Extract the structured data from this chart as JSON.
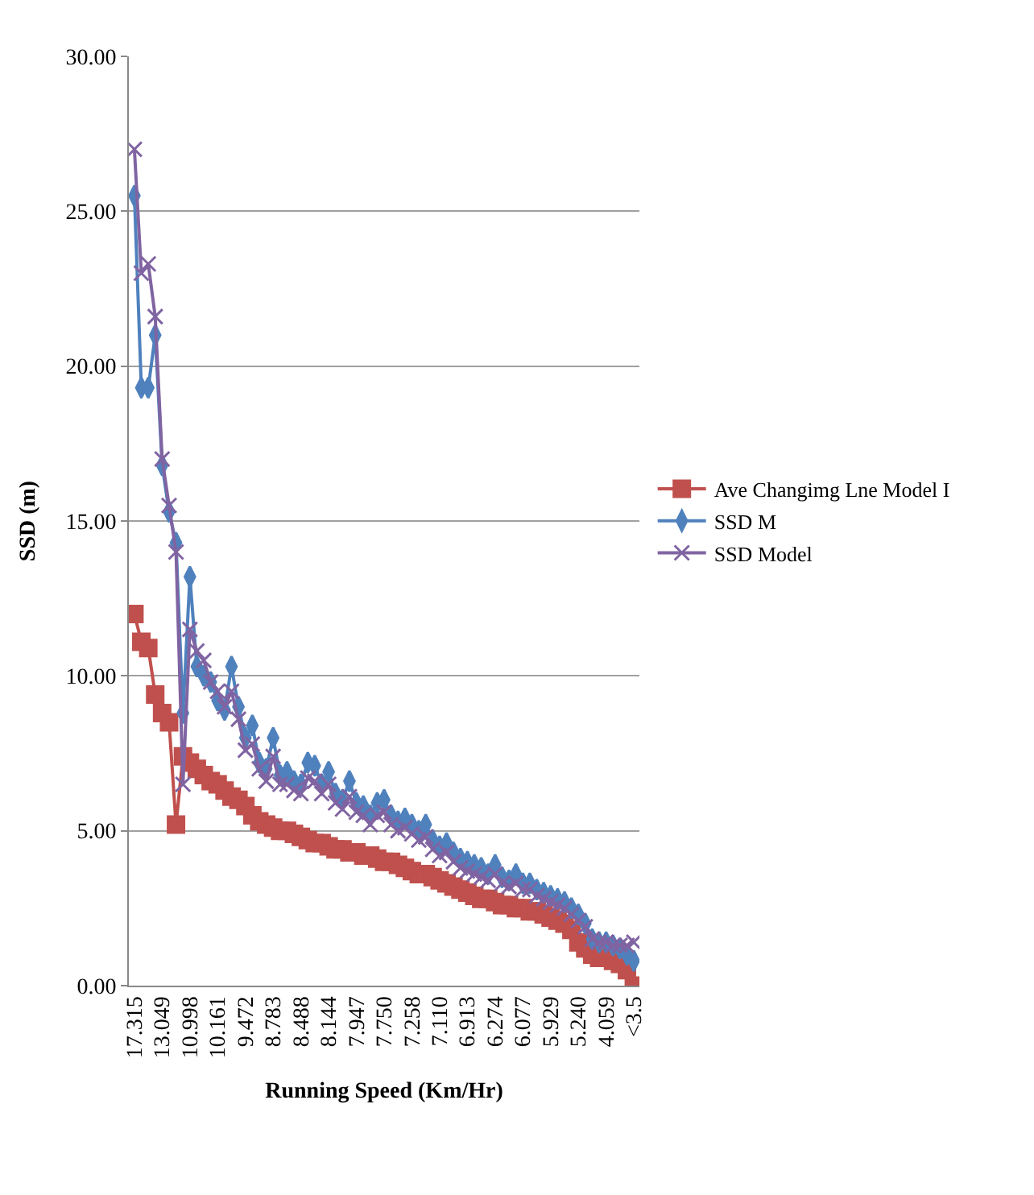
{
  "chart_data": {
    "type": "line",
    "xlabel": "Running Speed (Km/Hr)",
    "ylabel": "SSD (m)",
    "categories": [
      "17.315",
      null,
      null,
      null,
      "13.049",
      null,
      null,
      null,
      "10.998",
      null,
      null,
      null,
      "10.161",
      null,
      null,
      null,
      "9.472",
      null,
      null,
      null,
      "8.783",
      null,
      null,
      null,
      "8.488",
      null,
      null,
      null,
      "8.144",
      null,
      null,
      null,
      "7.947",
      null,
      null,
      null,
      "7.750",
      null,
      null,
      null,
      "7.258",
      null,
      null,
      null,
      "7.110",
      null,
      null,
      null,
      "6.913",
      null,
      null,
      null,
      "6.274",
      null,
      null,
      null,
      "6.077",
      null,
      null,
      null,
      "5.929",
      null,
      null,
      null,
      "5.240",
      null,
      null,
      null,
      "4.059",
      null,
      null,
      null,
      "<3.5"
    ],
    "ylim": [
      0,
      30
    ],
    "yticks": [
      {
        "value": 0,
        "label": "0.00"
      },
      {
        "value": 5,
        "label": "5.00"
      },
      {
        "value": 10,
        "label": "10.00"
      },
      {
        "value": 15,
        "label": "15.00"
      },
      {
        "value": 20,
        "label": "20.00"
      },
      {
        "value": 25,
        "label": "25.00"
      },
      {
        "value": 30,
        "label": "30.00"
      }
    ],
    "grid": "y",
    "legend": "right",
    "series": [
      {
        "name": "Ave Changimg Lne Model I",
        "color": "#c0504d",
        "marker": "square",
        "values": [
          12.0,
          11.1,
          10.9,
          9.4,
          8.8,
          8.5,
          5.2,
          7.4,
          7.2,
          7.0,
          6.8,
          6.6,
          6.5,
          6.3,
          6.1,
          6.0,
          5.8,
          5.5,
          5.3,
          5.2,
          5.1,
          5.0,
          5.0,
          4.9,
          4.8,
          4.7,
          4.6,
          4.6,
          4.5,
          4.4,
          4.4,
          4.3,
          4.3,
          4.2,
          4.2,
          4.1,
          4.0,
          4.0,
          3.9,
          3.8,
          3.7,
          3.6,
          3.6,
          3.5,
          3.4,
          3.3,
          3.2,
          3.1,
          3.0,
          2.9,
          2.8,
          2.8,
          2.7,
          2.6,
          2.6,
          2.5,
          2.5,
          2.4,
          2.4,
          2.3,
          2.2,
          2.1,
          2.0,
          1.8,
          1.4,
          1.2,
          1.0,
          0.9,
          0.9,
          0.8,
          0.7,
          0.5,
          0.0
        ]
      },
      {
        "name": "SSD M",
        "color": "#4f81bd",
        "marker": "diamond",
        "values": [
          25.5,
          19.3,
          19.3,
          21.0,
          16.8,
          15.3,
          14.3,
          8.8,
          13.2,
          10.3,
          10.0,
          9.8,
          9.2,
          8.9,
          10.3,
          9.0,
          8.0,
          8.4,
          7.2,
          7.0,
          8.0,
          6.8,
          6.9,
          6.6,
          6.5,
          7.2,
          7.1,
          6.5,
          6.9,
          6.2,
          6.0,
          6.6,
          5.9,
          5.8,
          5.5,
          5.9,
          6.0,
          5.5,
          5.3,
          5.4,
          5.2,
          5.0,
          5.2,
          4.7,
          4.5,
          4.6,
          4.3,
          4.1,
          4.0,
          3.9,
          3.8,
          3.6,
          3.9,
          3.5,
          3.4,
          3.6,
          3.3,
          3.3,
          3.1,
          3.0,
          2.9,
          2.8,
          2.7,
          2.5,
          2.3,
          2.0,
          1.5,
          1.4,
          1.4,
          1.3,
          1.2,
          1.0,
          0.8
        ]
      },
      {
        "name": "SSD Model",
        "color": "#8064a2",
        "marker": "cross",
        "values": [
          27.0,
          23.0,
          23.3,
          21.6,
          17.0,
          15.5,
          14.0,
          6.5,
          11.5,
          10.8,
          10.5,
          9.8,
          9.5,
          9.0,
          9.5,
          8.6,
          7.6,
          7.8,
          7.0,
          6.6,
          7.4,
          6.5,
          6.5,
          6.3,
          6.2,
          6.7,
          6.6,
          6.2,
          6.5,
          5.9,
          5.7,
          6.1,
          5.6,
          5.5,
          5.2,
          5.5,
          5.6,
          5.2,
          5.0,
          5.1,
          4.9,
          4.7,
          4.8,
          4.4,
          4.2,
          4.3,
          4.0,
          3.8,
          3.7,
          3.6,
          3.5,
          3.4,
          3.6,
          3.3,
          3.2,
          3.3,
          3.1,
          3.1,
          2.9,
          2.8,
          2.7,
          2.6,
          2.5,
          2.3,
          2.1,
          1.9,
          1.5,
          1.4,
          1.4,
          1.3,
          1.3,
          1.3,
          1.4
        ]
      }
    ]
  }
}
